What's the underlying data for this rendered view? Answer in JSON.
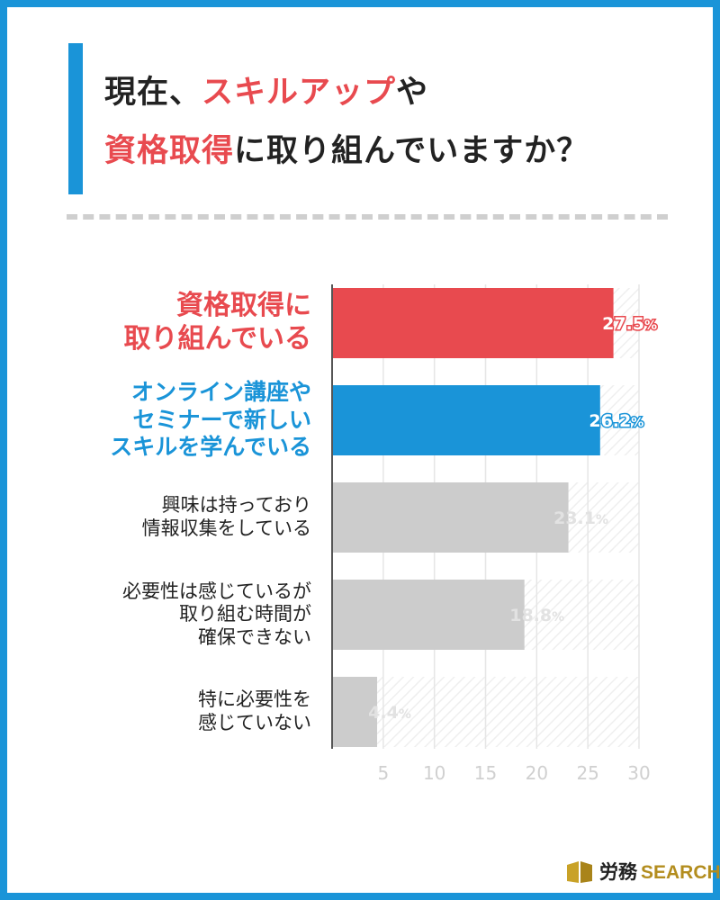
{
  "title": {
    "line1_prefix": "現在、",
    "line1_highlight": "スキルアップ",
    "line1_suffix": "や",
    "line2_highlight": "資格取得",
    "line2_suffix": "に取り組んでいますか？"
  },
  "chart_data": {
    "type": "bar",
    "orientation": "horizontal",
    "categories": [
      "資格取得に取り組んでいる",
      "オンライン講座やセミナーで新しいスキルを学んでいる",
      "興味は持っており情報収集をしている",
      "必要性は感じているが取り組む時間が確保できない",
      "特に必要性を感じていない"
    ],
    "category_lines": [
      [
        "資格取得に",
        "取り組んでいる"
      ],
      [
        "オンライン講座や",
        "セミナーで新しい",
        "スキルを学んでいる"
      ],
      [
        "興味は持っており",
        "情報収集をしている"
      ],
      [
        "必要性は感じているが",
        "取り組む時間が",
        "確保できない"
      ],
      [
        "特に必要性を",
        "感じていない"
      ]
    ],
    "values": [
      27.5,
      26.2,
      23.1,
      18.8,
      4.4
    ],
    "value_labels": [
      "27.5",
      "26.2",
      "23.1",
      "18.8",
      "4.4"
    ],
    "unit": "%",
    "xlim": [
      0,
      30
    ],
    "xticks": [
      "5",
      "10",
      "15",
      "20",
      "25",
      "30"
    ],
    "grid": true,
    "colors": [
      "#e84a4f",
      "#1a94d8",
      "#cccccc",
      "#cccccc",
      "#cccccc"
    ],
    "label_colors": [
      "#e84a4f",
      "#1a94d8",
      "#222222",
      "#222222",
      "#222222"
    ]
  },
  "brand": {
    "kanji": "労務",
    "name": "SEARCH"
  }
}
